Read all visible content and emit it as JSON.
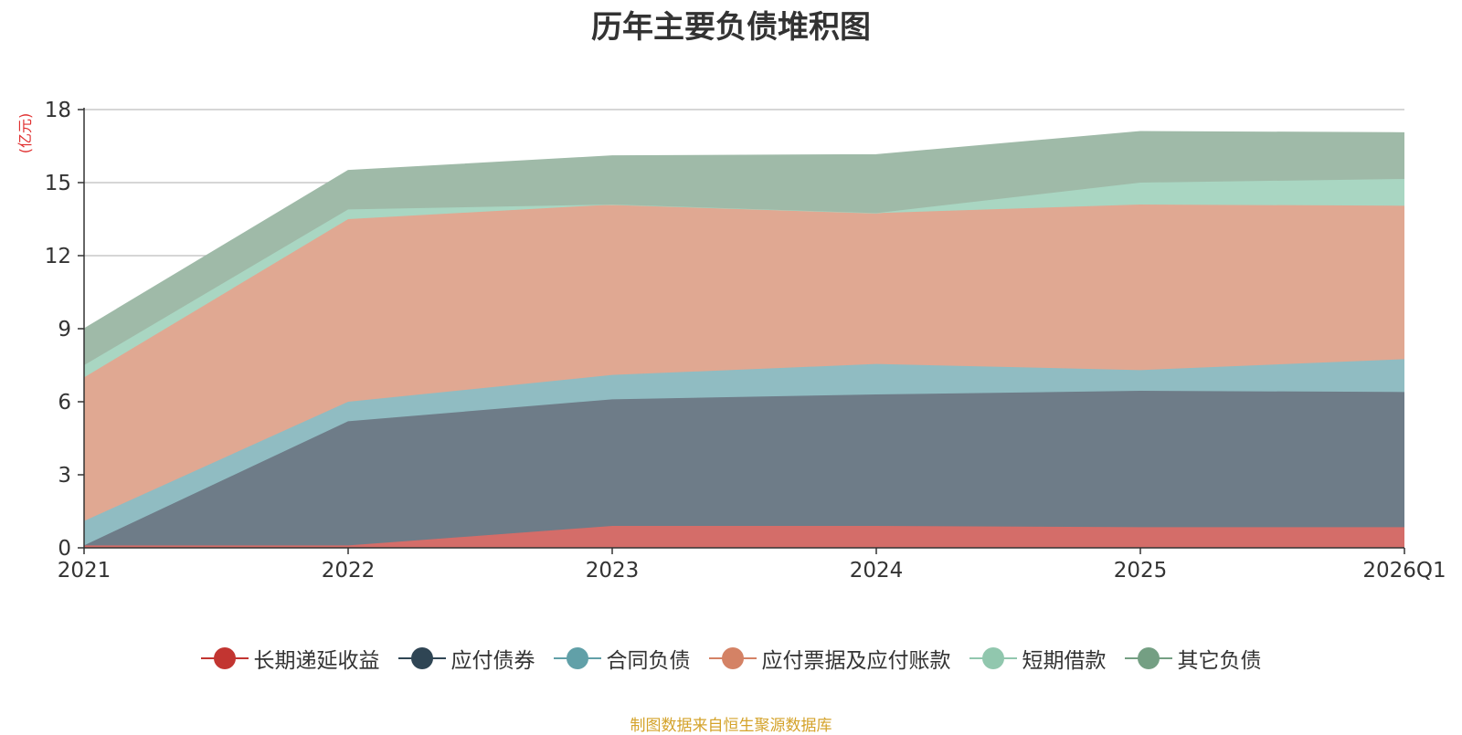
{
  "chart_data": {
    "type": "area",
    "stacked": true,
    "title": "历年主要负债堆积图",
    "ylabel": "(亿元)",
    "xlabel": "",
    "categories": [
      "2021",
      "2022",
      "2023",
      "2024",
      "2025",
      "2026Q1"
    ],
    "ylim": [
      0,
      18
    ],
    "yticks": [
      0,
      3,
      6,
      9,
      12,
      15,
      18
    ],
    "grid": true,
    "legend_position": "bottom",
    "series": [
      {
        "name": "长期递延收益",
        "color": "#c23531",
        "fill": "#d46d69",
        "values": [
          0.1,
          0.1,
          0.9,
          0.9,
          0.85,
          0.85
        ]
      },
      {
        "name": "应付债券",
        "color": "#2f4554",
        "fill": "#6e7c88",
        "values": [
          0.0,
          5.1,
          5.2,
          5.4,
          5.6,
          5.55
        ]
      },
      {
        "name": "合同负债",
        "color": "#61a0a8",
        "fill": "#90bcc2",
        "values": [
          1.0,
          0.8,
          1.0,
          1.25,
          0.85,
          1.35
        ]
      },
      {
        "name": "应付票据及应付账款",
        "color": "#d48265",
        "fill": "#e0a892",
        "values": [
          5.9,
          7.5,
          7.0,
          6.2,
          6.8,
          6.3
        ]
      },
      {
        "name": "短期借款",
        "color": "#91c7ae",
        "fill": "#a9d6c2",
        "values": [
          0.5,
          0.4,
          0.0,
          0.0,
          0.9,
          1.1
        ]
      },
      {
        "name": "其它负债",
        "color": "#749f83",
        "fill": "#9fbaa8",
        "values": [
          1.5,
          1.6,
          2.0,
          2.4,
          2.1,
          1.9
        ]
      }
    ],
    "source": "制图数据来自恒生聚源数据库"
  }
}
